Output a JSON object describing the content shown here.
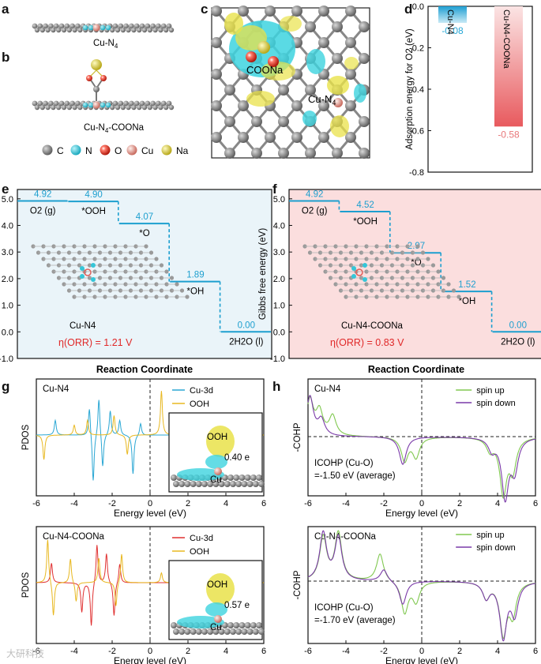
{
  "panel_letters": {
    "a": "a",
    "b": "b",
    "c": "c",
    "d": "d",
    "e": "e",
    "f": "f",
    "g": "g",
    "h": "h"
  },
  "structures": {
    "a_label": "Cu-N",
    "a_sub": "4",
    "b_label": "Cu-N",
    "b_sub": "4",
    "b_suffix": "-COONa",
    "legend": [
      {
        "symbol": "C",
        "color": "#8a8a8a"
      },
      {
        "symbol": "N",
        "color": "#35c6d8"
      },
      {
        "symbol": "O",
        "color": "#d9341c"
      },
      {
        "symbol": "Cu",
        "color": "#e49a90"
      },
      {
        "symbol": "Na",
        "color": "#d8c73a"
      }
    ]
  },
  "charge_density": {
    "label_coona": "COONa",
    "label_cun4": "Cu-N",
    "label_cun4_sub": "4"
  },
  "chart_data": [
    {
      "id": "d",
      "type": "bar",
      "ylabel": "Adsorption energy for O2 (eV)",
      "ylim": [
        -0.8,
        0.0
      ],
      "yticks": [
        "0.0",
        "-0.2",
        "-0.4",
        "-0.6",
        "-0.8"
      ],
      "categories": [
        "Cu-N4",
        "Cu-N4-COONa"
      ],
      "values": [
        -0.08,
        -0.58
      ],
      "value_labels": [
        "-0.08",
        "-0.58"
      ],
      "colors": [
        "#29a8d6",
        "#e8787a"
      ]
    },
    {
      "id": "e",
      "type": "line",
      "title": "Cu-N4",
      "xlabel": "Reaction Coordinate",
      "ylabel": "Gibbs free energy (eV)",
      "ylim": [
        -1.0,
        5.0
      ],
      "yticks": [
        "-1.0",
        "0.0",
        "1.0",
        "2.0",
        "3.0",
        "4.0",
        "5.0"
      ],
      "steps": [
        {
          "species": "O2 (g)",
          "value": 4.92,
          "label": "4.92"
        },
        {
          "species": "*OOH",
          "value": 4.9,
          "label": "4.90"
        },
        {
          "species": "*O",
          "value": 4.07,
          "label": "4.07"
        },
        {
          "species": "*OH",
          "value": 1.89,
          "label": "1.89"
        },
        {
          "species": "2H2O (l)",
          "value": 0.0,
          "label": "0.00"
        }
      ],
      "annotation": "η(ORR) = 1.21 V",
      "structure_label": "Cu-N4"
    },
    {
      "id": "f",
      "type": "line",
      "title": "Cu-N4-COONa",
      "xlabel": "Reaction Coordinate",
      "ylabel": "Gibbs free energy (eV)",
      "ylim": [
        -1.0,
        5.0
      ],
      "yticks": [
        "-1.0",
        "0.0",
        "1.0",
        "2.0",
        "3.0",
        "4.0",
        "5.0"
      ],
      "steps": [
        {
          "species": "O2 (g)",
          "value": 4.92,
          "label": "4.92"
        },
        {
          "species": "*OOH",
          "value": 4.52,
          "label": "4.52"
        },
        {
          "species": "*O",
          "value": 2.97,
          "label": "2.97"
        },
        {
          "species": "*OH",
          "value": 1.52,
          "label": "1.52"
        },
        {
          "species": "2H2O (l)",
          "value": 0.0,
          "label": "0.00"
        }
      ],
      "annotation": "η(ORR) = 0.83 V",
      "structure_label": "Cu-N4-COONa"
    },
    {
      "id": "g1",
      "type": "line",
      "title": "Cu-N4",
      "xlabel": "Energy level (eV)",
      "ylabel": "PDOS",
      "xlim": [
        -6,
        6
      ],
      "xticks": [
        "-6",
        "-4",
        "-2",
        "0",
        "2",
        "4",
        "6"
      ],
      "series": [
        {
          "name": "Cu-3d",
          "color": "#2aa7d4",
          "peaks": [
            [
              -5.0,
              0.3
            ],
            [
              -3.2,
              0.6
            ],
            [
              -3.0,
              -1.0
            ],
            [
              -2.7,
              0.8
            ],
            [
              -2.5,
              -0.7
            ],
            [
              -2.1,
              0.5
            ],
            [
              -1.6,
              0.3
            ],
            [
              -0.9,
              -0.8
            ],
            [
              -0.5,
              0.25
            ]
          ]
        },
        {
          "name": "OOH",
          "color": "#e8b820",
          "peaks": [
            [
              -5.6,
              -0.5
            ],
            [
              -4.0,
              0.2
            ],
            [
              -3.3,
              0.3
            ],
            [
              -1.9,
              0.4
            ],
            [
              -1.2,
              -0.4
            ],
            [
              0.6,
              0.9
            ],
            [
              2.4,
              0.2
            ]
          ]
        }
      ],
      "annotation": "0.40 e",
      "inset_labels": [
        "OOH",
        "Cu"
      ]
    },
    {
      "id": "g2",
      "type": "line",
      "title": "Cu-N4-COONa",
      "xlabel": "Energy level (eV)",
      "ylabel": "PDOS",
      "xlim": [
        -6,
        6
      ],
      "xticks": [
        "-6",
        "-4",
        "-2",
        "0",
        "2",
        "4",
        "6"
      ],
      "series": [
        {
          "name": "Cu-3d",
          "color": "#e03030",
          "peaks": [
            [
              -5.2,
              0.4
            ],
            [
              -3.6,
              -0.6
            ],
            [
              -3.1,
              -0.9
            ],
            [
              -2.8,
              0.8
            ],
            [
              -2.3,
              0.6
            ],
            [
              -1.9,
              -0.7
            ],
            [
              -1.6,
              0.4
            ]
          ]
        },
        {
          "name": "OOH",
          "color": "#e8b820",
          "peaks": [
            [
              -5.4,
              0.9
            ],
            [
              -5.1,
              -0.7
            ],
            [
              -4.2,
              0.5
            ],
            [
              -3.9,
              -0.4
            ],
            [
              -2.7,
              0.5
            ],
            [
              -1.8,
              -0.5
            ],
            [
              -1.5,
              0.6
            ],
            [
              0.6,
              0.2
            ]
          ]
        }
      ],
      "annotation": "0.57 e",
      "inset_labels": [
        "OOH",
        "Cu"
      ]
    },
    {
      "id": "h1",
      "type": "line",
      "title": "Cu-N4",
      "xlabel": "Energy level (eV)",
      "ylabel": "-COHP",
      "xlim": [
        -6,
        6
      ],
      "xticks": [
        "-6",
        "-4",
        "-2",
        "0",
        "2",
        "4",
        "6"
      ],
      "series": [
        {
          "name": "spin up",
          "color": "#80c850"
        },
        {
          "name": "spin down",
          "color": "#7a3aa8"
        }
      ],
      "annotation_line1": "ICOHP (Cu-O)",
      "annotation_line2": "=-1.50 eV (average)"
    },
    {
      "id": "h2",
      "type": "line",
      "title": "Cu-N4-COONa",
      "xlabel": "Energy level (eV)",
      "ylabel": "-COHP",
      "xlim": [
        -6,
        6
      ],
      "xticks": [
        "-6",
        "-4",
        "-2",
        "0",
        "2",
        "4",
        "6"
      ],
      "series": [
        {
          "name": "spin up",
          "color": "#80c850"
        },
        {
          "name": "spin down",
          "color": "#7a3aa8"
        }
      ],
      "annotation_line1": "ICOHP (Cu-O)",
      "annotation_line2": "=-1.70 eV (average)"
    }
  ],
  "watermark": "大研科技"
}
